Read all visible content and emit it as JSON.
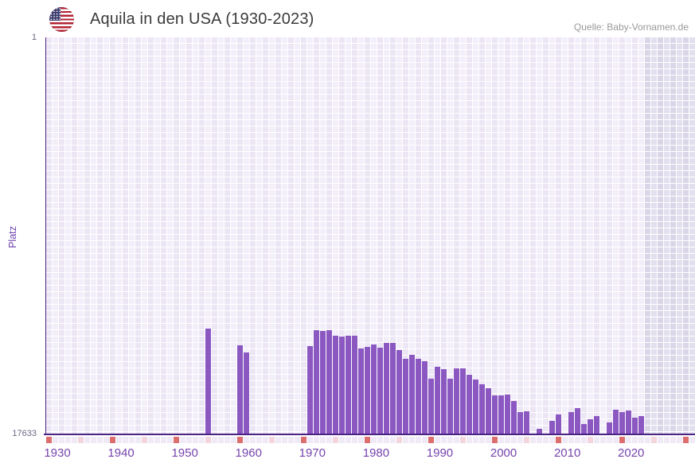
{
  "header": {
    "title": "Aquila in den USA (1930-2023)",
    "source": "Quelle: Baby-Vornamen.de",
    "flag_icon": "us-flag-icon"
  },
  "chart_data": {
    "type": "bar",
    "title": "Aquila in den USA (1930-2023)",
    "source": "Quelle: Baby-Vornamen.de",
    "ylabel": "Platz",
    "xlabel": "",
    "grid": true,
    "legend": "none",
    "y_axis": {
      "min": 1,
      "max": 17633,
      "inverted": true,
      "top_tick": "1",
      "bottom_tick": "17633",
      "note": "rank 1 at top, bars rise from bottom (worse rank = shorter bar)"
    },
    "x_axis": {
      "grid_start": 1930,
      "grid_end": 2031,
      "data_start": 1930,
      "data_end": 2023,
      "future_shaded_from": 2024,
      "tick_years": [
        1930,
        1940,
        1950,
        1960,
        1970,
        1980,
        1990,
        2000,
        2010,
        2020
      ],
      "tick_labels": [
        "1930",
        "1940",
        "1950",
        "1960",
        "1970",
        "1980",
        "1990",
        "2000",
        "2010",
        "2020"
      ],
      "marker_strip": "one cell per year below axis; decade years salmon, mid-decade years pink"
    },
    "years": [
      1955,
      1960,
      1961,
      1971,
      1972,
      1973,
      1974,
      1975,
      1976,
      1977,
      1978,
      1979,
      1980,
      1981,
      1982,
      1983,
      1984,
      1985,
      1986,
      1987,
      1988,
      1989,
      1990,
      1991,
      1992,
      1993,
      1994,
      1995,
      1996,
      1997,
      1998,
      1999,
      2000,
      2001,
      2002,
      2003,
      2004,
      2005,
      2007,
      2009,
      2010,
      2012,
      2013,
      2014,
      2015,
      2016,
      2018,
      2019,
      2020,
      2021,
      2022,
      2023
    ],
    "ranks": [
      12960,
      13700,
      14020,
      13740,
      13030,
      13070,
      13030,
      13280,
      13310,
      13280,
      13280,
      13850,
      13770,
      13670,
      13810,
      13600,
      13600,
      13920,
      14310,
      14130,
      14310,
      14410,
      15190,
      14660,
      14770,
      15190,
      14730,
      14730,
      15010,
      15230,
      15440,
      15620,
      15930,
      15930,
      15900,
      16180,
      16680,
      16640,
      17420,
      17070,
      16780,
      16680,
      16500,
      17210,
      17000,
      16850,
      17140,
      16570,
      16680,
      16610,
      16930,
      16850
    ],
    "years_without_rank": "1930-1954, 1956-1959, 1962-1970, 2006, 2008, 2011, 2017"
  },
  "colors": {
    "bar": "#8b58c2",
    "grid_col_dark": "#ebe5f4",
    "grid_col_light": "#f3effa",
    "grid_future_dark": "#dad6e7",
    "grid_future_light": "#e2dfee",
    "axis_line": "#4a2383",
    "marker_decade": "#dd6e6e",
    "marker_half_decade": "#f3d6dd",
    "marker_default": "#efeaf6",
    "x_label": "#7744ad",
    "y_number": "#6e6584",
    "y_title": "#6a3fae",
    "title_text": "#3b3b3b",
    "source_text": "#999999",
    "flag_red": "#b22234",
    "flag_blue": "#3c3b6e"
  }
}
